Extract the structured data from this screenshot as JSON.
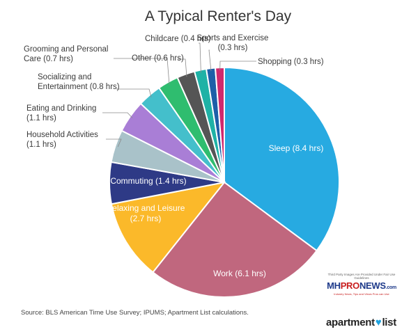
{
  "chart_data": {
    "type": "pie",
    "title": "A Typical Renter's Day",
    "unit": "hrs",
    "slices": [
      {
        "label": "Sleep (8.4 hrs)",
        "value": 8.4,
        "color": "#27aae1",
        "label_inside": true
      },
      {
        "label": "Work (6.1 hrs)",
        "value": 6.1,
        "color": "#c0677e",
        "label_inside": true
      },
      {
        "label": "Relaxing and Leisure (2.7 hrs)",
        "value": 2.7,
        "color": "#fbb92a",
        "label_inside": true
      },
      {
        "label": "Commuting (1.4 hrs)",
        "value": 1.4,
        "color": "#2e3a86",
        "label_inside": true
      },
      {
        "label": "Household Activities (1.1 hrs)",
        "value": 1.1,
        "color": "#a9c2c9",
        "label_inside": false
      },
      {
        "label": "Eating and Drinking (1.1 hrs)",
        "value": 1.1,
        "color": "#a97ed6",
        "label_inside": false
      },
      {
        "label": "Socializing and Entertainment (0.8 hrs)",
        "value": 0.8,
        "color": "#44bfcb",
        "label_inside": false
      },
      {
        "label": "Grooming and Personal Care (0.7 hrs)",
        "value": 0.7,
        "color": "#2fbd6f",
        "label_inside": false
      },
      {
        "label": "Other (0.6 hrs)",
        "value": 0.6,
        "color": "#555555",
        "label_inside": false
      },
      {
        "label": "Childcare (0.4 hrs)",
        "value": 0.4,
        "color": "#1fb2a6",
        "label_inside": false
      },
      {
        "label": "Sports and Exercise (0.3 hrs)",
        "value": 0.3,
        "color": "#1d5fa8",
        "label_inside": false
      },
      {
        "label": "Shopping (0.3 hrs)",
        "value": 0.3,
        "color": "#d0296e",
        "label_inside": false
      }
    ]
  },
  "footer": {
    "source": "Source: BLS American Time Use Survey; IPUMS; Apartment List calculations."
  },
  "watermark": {
    "caption": "Third Party Images Are Provided Under Fair Use Guidelines",
    "mh": "MH",
    "pro": "PRO",
    "news": "NEWS",
    "dotcom": ".com",
    "tagline": "Industry News, Tips and Views Pros can Use"
  },
  "brand": {
    "part1": "apartment",
    "heart": "♥",
    "part2": "list"
  }
}
